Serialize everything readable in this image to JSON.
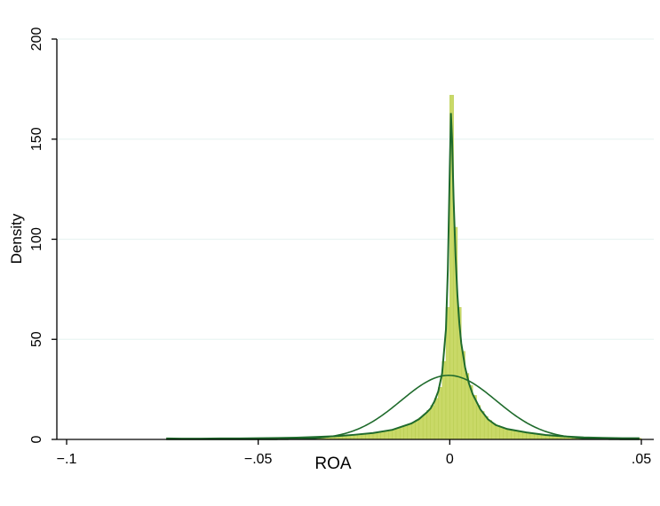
{
  "colors": {
    "bar_fill": "#c9d967",
    "bar_stroke": "#b3c84a",
    "kde_line": "#1f6b2c",
    "normal_line": "#1f6b2c",
    "grid": "#eaf4f2",
    "axis": "#000000"
  },
  "chart_data": {
    "type": "histogram",
    "xlabel": "ROA",
    "ylabel": "Density",
    "xlim": [
      -0.1,
      0.05
    ],
    "ylim": [
      0,
      200
    ],
    "x_ticks": [
      -0.1,
      -0.05,
      0,
      0.05
    ],
    "x_tick_labels": [
      "−.1",
      "−.05",
      "0",
      ".05"
    ],
    "y_ticks": [
      0,
      50,
      100,
      150,
      200
    ],
    "y_tick_labels": [
      "0",
      "50",
      "100",
      "150",
      "200"
    ],
    "grid": true,
    "histogram": {
      "bin_width": 0.001,
      "bins": [
        {
          "x": -0.0735,
          "y": 0.4
        },
        {
          "x": -0.0725,
          "y": 0.3
        },
        {
          "x": -0.0715,
          "y": 0.5
        },
        {
          "x": -0.0705,
          "y": 0.4
        },
        {
          "x": -0.0695,
          "y": 0.3
        },
        {
          "x": -0.0685,
          "y": 0.5
        },
        {
          "x": -0.0675,
          "y": 0.4
        },
        {
          "x": -0.0665,
          "y": 0.3
        },
        {
          "x": -0.0655,
          "y": 0.4
        },
        {
          "x": -0.0645,
          "y": 0.5
        },
        {
          "x": -0.0635,
          "y": 0.4
        },
        {
          "x": -0.0625,
          "y": 0.3
        },
        {
          "x": -0.0615,
          "y": 0.5
        },
        {
          "x": -0.0605,
          "y": 0.4
        },
        {
          "x": -0.0595,
          "y": 0.5
        },
        {
          "x": -0.0585,
          "y": 0.4
        },
        {
          "x": -0.0575,
          "y": 0.5
        },
        {
          "x": -0.0565,
          "y": 0.4
        },
        {
          "x": -0.0555,
          "y": 0.6
        },
        {
          "x": -0.0545,
          "y": 0.5
        },
        {
          "x": -0.0535,
          "y": 0.4
        },
        {
          "x": -0.0525,
          "y": 0.6
        },
        {
          "x": -0.0515,
          "y": 0.5
        },
        {
          "x": -0.0505,
          "y": 0.6
        },
        {
          "x": -0.0495,
          "y": 0.5
        },
        {
          "x": -0.0485,
          "y": 0.6
        },
        {
          "x": -0.0475,
          "y": 0.7
        },
        {
          "x": -0.0465,
          "y": 0.6
        },
        {
          "x": -0.0455,
          "y": 0.7
        },
        {
          "x": -0.0445,
          "y": 0.8
        },
        {
          "x": -0.0435,
          "y": 0.7
        },
        {
          "x": -0.0425,
          "y": 0.8
        },
        {
          "x": -0.0415,
          "y": 0.9
        },
        {
          "x": -0.0405,
          "y": 0.8
        },
        {
          "x": -0.0395,
          "y": 1.0
        },
        {
          "x": -0.0385,
          "y": 0.9
        },
        {
          "x": -0.0375,
          "y": 1.0
        },
        {
          "x": -0.0365,
          "y": 1.1
        },
        {
          "x": -0.0355,
          "y": 1.2
        },
        {
          "x": -0.0345,
          "y": 1.1
        },
        {
          "x": -0.0335,
          "y": 1.3
        },
        {
          "x": -0.0325,
          "y": 1.4
        },
        {
          "x": -0.0315,
          "y": 1.5
        },
        {
          "x": -0.0305,
          "y": 1.6
        },
        {
          "x": -0.0295,
          "y": 1.7
        },
        {
          "x": -0.0285,
          "y": 1.8
        },
        {
          "x": -0.0275,
          "y": 2.0
        },
        {
          "x": -0.0265,
          "y": 2.1
        },
        {
          "x": -0.0255,
          "y": 2.3
        },
        {
          "x": -0.0245,
          "y": 2.5
        },
        {
          "x": -0.0235,
          "y": 2.6
        },
        {
          "x": -0.0225,
          "y": 2.8
        },
        {
          "x": -0.0215,
          "y": 3.0
        },
        {
          "x": -0.0205,
          "y": 3.2
        },
        {
          "x": -0.0195,
          "y": 3.4
        },
        {
          "x": -0.0185,
          "y": 3.7
        },
        {
          "x": -0.0175,
          "y": 4.0
        },
        {
          "x": -0.0165,
          "y": 4.3
        },
        {
          "x": -0.0155,
          "y": 4.7
        },
        {
          "x": -0.0145,
          "y": 5.1
        },
        {
          "x": -0.0135,
          "y": 5.6
        },
        {
          "x": -0.0125,
          "y": 6.2
        },
        {
          "x": -0.0115,
          "y": 6.9
        },
        {
          "x": -0.0105,
          "y": 7.6
        },
        {
          "x": -0.0095,
          "y": 8.5
        },
        {
          "x": -0.0085,
          "y": 9.6
        },
        {
          "x": -0.0075,
          "y": 10.9
        },
        {
          "x": -0.0065,
          "y": 12.5
        },
        {
          "x": -0.0055,
          "y": 14.5
        },
        {
          "x": -0.0045,
          "y": 17.0
        },
        {
          "x": -0.0035,
          "y": 20.5
        },
        {
          "x": -0.0025,
          "y": 26.0
        },
        {
          "x": -0.0015,
          "y": 39.0
        },
        {
          "x": -0.0005,
          "y": 66.0
        },
        {
          "x": 0.0005,
          "y": 172.0
        },
        {
          "x": 0.0015,
          "y": 106.0
        },
        {
          "x": 0.0025,
          "y": 66.0
        },
        {
          "x": 0.0035,
          "y": 44.0
        },
        {
          "x": 0.0045,
          "y": 33.0
        },
        {
          "x": 0.0055,
          "y": 27.0
        },
        {
          "x": 0.0065,
          "y": 22.0
        },
        {
          "x": 0.0075,
          "y": 17.0
        },
        {
          "x": 0.0085,
          "y": 14.0
        },
        {
          "x": 0.0095,
          "y": 11.5
        },
        {
          "x": 0.0105,
          "y": 9.5
        },
        {
          "x": 0.0115,
          "y": 8.0
        },
        {
          "x": 0.0125,
          "y": 7.0
        },
        {
          "x": 0.0135,
          "y": 6.2
        },
        {
          "x": 0.0145,
          "y": 5.5
        },
        {
          "x": 0.0155,
          "y": 5.0
        },
        {
          "x": 0.0165,
          "y": 4.6
        },
        {
          "x": 0.0175,
          "y": 4.2
        },
        {
          "x": 0.0185,
          "y": 3.9
        },
        {
          "x": 0.0195,
          "y": 3.6
        },
        {
          "x": 0.0205,
          "y": 3.3
        },
        {
          "x": 0.0215,
          "y": 3.0
        },
        {
          "x": 0.0225,
          "y": 2.8
        },
        {
          "x": 0.0235,
          "y": 2.5
        },
        {
          "x": 0.0245,
          "y": 2.3
        },
        {
          "x": 0.0255,
          "y": 2.1
        },
        {
          "x": 0.0265,
          "y": 2.0
        },
        {
          "x": 0.0275,
          "y": 1.8
        },
        {
          "x": 0.0285,
          "y": 1.7
        },
        {
          "x": 0.0295,
          "y": 1.5
        },
        {
          "x": 0.0305,
          "y": 1.4
        },
        {
          "x": 0.0315,
          "y": 1.3
        },
        {
          "x": 0.0325,
          "y": 1.2
        },
        {
          "x": 0.0335,
          "y": 1.1
        },
        {
          "x": 0.0345,
          "y": 1.0
        },
        {
          "x": 0.0355,
          "y": 1.0
        },
        {
          "x": 0.0365,
          "y": 0.9
        },
        {
          "x": 0.0375,
          "y": 0.9
        },
        {
          "x": 0.0385,
          "y": 0.8
        },
        {
          "x": 0.0395,
          "y": 0.8
        },
        {
          "x": 0.0405,
          "y": 0.7
        },
        {
          "x": 0.0415,
          "y": 0.7
        },
        {
          "x": 0.0425,
          "y": 0.6
        },
        {
          "x": 0.0435,
          "y": 0.6
        },
        {
          "x": 0.0445,
          "y": 0.6
        },
        {
          "x": 0.0455,
          "y": 0.5
        },
        {
          "x": 0.0465,
          "y": 0.5
        },
        {
          "x": 0.0475,
          "y": 0.5
        },
        {
          "x": 0.0485,
          "y": 0.6
        },
        {
          "x": 0.0495,
          "y": 0.6
        }
      ]
    },
    "kde_curve": {
      "points": [
        [
          -0.074,
          0.5
        ],
        [
          -0.07,
          0.4
        ],
        [
          -0.065,
          0.4
        ],
        [
          -0.06,
          0.5
        ],
        [
          -0.055,
          0.5
        ],
        [
          -0.05,
          0.6
        ],
        [
          -0.045,
          0.7
        ],
        [
          -0.04,
          0.9
        ],
        [
          -0.035,
          1.2
        ],
        [
          -0.03,
          1.6
        ],
        [
          -0.025,
          2.3
        ],
        [
          -0.02,
          3.2
        ],
        [
          -0.015,
          4.8
        ],
        [
          -0.01,
          8.0
        ],
        [
          -0.008,
          10.2
        ],
        [
          -0.006,
          13.5
        ],
        [
          -0.005,
          15.5
        ],
        [
          -0.004,
          19.0
        ],
        [
          -0.003,
          24.0
        ],
        [
          -0.002,
          33.0
        ],
        [
          -0.001,
          55.0
        ],
        [
          -0.0005,
          85.0
        ],
        [
          0.0,
          135.0
        ],
        [
          0.0003,
          163.0
        ],
        [
          0.0006,
          150.0
        ],
        [
          0.001,
          120.0
        ],
        [
          0.0015,
          92.0
        ],
        [
          0.002,
          72.0
        ],
        [
          0.0025,
          58.0
        ],
        [
          0.003,
          48.0
        ],
        [
          0.004,
          36.0
        ],
        [
          0.005,
          28.0
        ],
        [
          0.006,
          22.5
        ],
        [
          0.008,
          15.0
        ],
        [
          0.01,
          10.0
        ],
        [
          0.012,
          7.2
        ],
        [
          0.015,
          5.2
        ],
        [
          0.02,
          3.5
        ],
        [
          0.025,
          2.2
        ],
        [
          0.03,
          1.5
        ],
        [
          0.035,
          1.0
        ],
        [
          0.04,
          0.8
        ],
        [
          0.045,
          0.6
        ],
        [
          0.0495,
          0.6
        ]
      ]
    },
    "normal_curve": {
      "mean": -0.0003,
      "sd": 0.0124,
      "peak_density": 32.0,
      "x_range": [
        -0.074,
        0.0495
      ]
    }
  }
}
